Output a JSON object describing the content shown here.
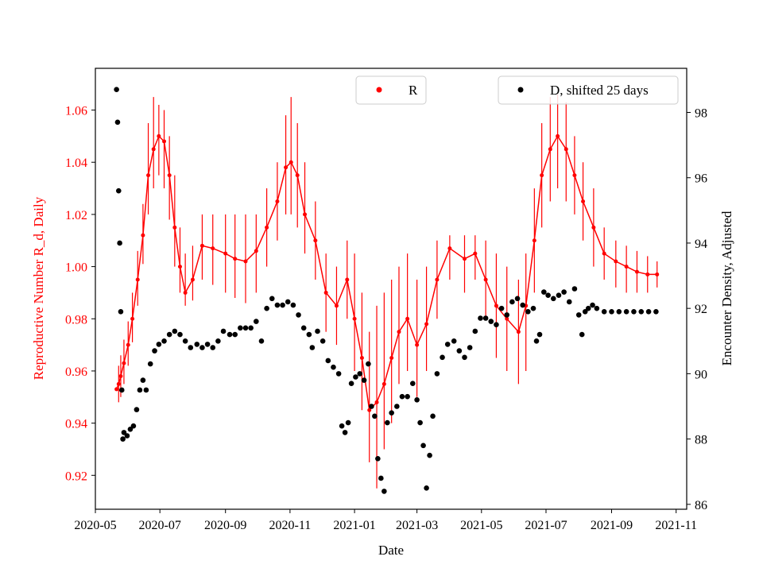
{
  "chart_data": {
    "type": "line",
    "xlabel": "Date",
    "ylabel_left": "Reproductive Number R_d, Daily",
    "ylabel_right": "Encounter Density, Adjusted",
    "x_range": [
      "2020-05-01",
      "2021-11-11"
    ],
    "ylim_left": [
      0.907,
      1.076
    ],
    "ylim_right": [
      85.85,
      99.35
    ],
    "x_tick_labels": [
      "2020-05",
      "2020-07",
      "2020-09",
      "2020-11",
      "2021-01",
      "2021-03",
      "2021-05",
      "2021-07",
      "2021-09",
      "2021-11"
    ],
    "x_tick_dates": [
      "2020-05-01",
      "2020-07-01",
      "2020-09-01",
      "2020-11-01",
      "2021-01-01",
      "2021-03-01",
      "2021-05-01",
      "2021-07-01",
      "2021-09-01",
      "2021-11-01"
    ],
    "y_left_ticks": [
      0.92,
      0.94,
      0.96,
      0.98,
      1.0,
      1.02,
      1.04,
      1.06
    ],
    "y_left_tick_labels": [
      "0.92",
      "0.94",
      "0.96",
      "0.98",
      "1.00",
      "1.02",
      "1.04",
      "1.06"
    ],
    "y_right_ticks": [
      86,
      88,
      90,
      92,
      94,
      96,
      98
    ],
    "y_right_tick_labels": [
      "86",
      "88",
      "90",
      "92",
      "94",
      "96",
      "98"
    ],
    "colors": {
      "R": "#ff0000",
      "D": "#000000",
      "axis": "#000000"
    },
    "legend": [
      {
        "label": "R",
        "placement": "top-center"
      },
      {
        "label": "D, shifted 25 days",
        "placement": "top-right"
      }
    ],
    "series": [
      {
        "name": "R",
        "axis": "left",
        "style": "markers with vertical error bars",
        "points": [
          [
            "2020-05-21",
            0.953,
            0.953,
            0.953
          ],
          [
            "2020-05-23",
            0.955,
            0.948,
            0.962
          ],
          [
            "2020-05-25",
            0.958,
            0.95,
            0.966
          ],
          [
            "2020-05-28",
            0.963,
            0.955,
            0.972
          ],
          [
            "2020-06-01",
            0.97,
            0.962,
            0.979
          ],
          [
            "2020-06-05",
            0.98,
            0.971,
            0.99
          ],
          [
            "2020-06-10",
            0.995,
            0.985,
            1.006
          ],
          [
            "2020-06-15",
            1.012,
            1.001,
            1.024
          ],
          [
            "2020-06-20",
            1.035,
            1.02,
            1.055
          ],
          [
            "2020-06-25",
            1.045,
            1.03,
            1.065
          ],
          [
            "2020-06-30",
            1.05,
            1.035,
            1.062
          ],
          [
            "2020-07-05",
            1.048,
            1.03,
            1.06
          ],
          [
            "2020-07-10",
            1.035,
            1.018,
            1.05
          ],
          [
            "2020-07-15",
            1.015,
            1.0,
            1.035
          ],
          [
            "2020-07-20",
            1.0,
            0.99,
            1.015
          ],
          [
            "2020-07-25",
            0.99,
            0.985,
            1.005
          ],
          [
            "2020-08-01",
            0.995,
            0.987,
            1.008
          ],
          [
            "2020-08-10",
            1.008,
            0.995,
            1.02
          ],
          [
            "2020-08-20",
            1.007,
            0.993,
            1.02
          ],
          [
            "2020-09-01",
            1.005,
            0.99,
            1.02
          ],
          [
            "2020-09-10",
            1.003,
            0.988,
            1.02
          ],
          [
            "2020-09-20",
            1.002,
            0.986,
            1.02
          ],
          [
            "2020-09-30",
            1.006,
            0.99,
            1.02
          ],
          [
            "2020-10-10",
            1.015,
            1.0,
            1.03
          ],
          [
            "2020-10-20",
            1.025,
            1.01,
            1.04
          ],
          [
            "2020-10-28",
            1.038,
            1.02,
            1.058
          ],
          [
            "2020-11-02",
            1.04,
            1.02,
            1.065
          ],
          [
            "2020-11-08",
            1.035,
            1.015,
            1.055
          ],
          [
            "2020-11-15",
            1.02,
            1.005,
            1.04
          ],
          [
            "2020-11-25",
            1.01,
            0.995,
            1.025
          ],
          [
            "2020-12-05",
            0.99,
            0.975,
            1.005
          ],
          [
            "2020-12-15",
            0.985,
            0.97,
            1.0
          ],
          [
            "2020-12-25",
            0.995,
            0.98,
            1.01
          ],
          [
            "2021-01-01",
            0.98,
            0.96,
            1.005
          ],
          [
            "2021-01-08",
            0.965,
            0.945,
            0.99
          ],
          [
            "2021-01-15",
            0.945,
            0.925,
            0.975
          ],
          [
            "2021-01-22",
            0.948,
            0.915,
            0.985
          ],
          [
            "2021-01-29",
            0.955,
            0.93,
            0.99
          ],
          [
            "2021-02-05",
            0.965,
            0.94,
            0.995
          ],
          [
            "2021-02-12",
            0.975,
            0.955,
            1.0
          ],
          [
            "2021-02-20",
            0.98,
            0.96,
            1.005
          ],
          [
            "2021-03-01",
            0.97,
            0.95,
            0.995
          ],
          [
            "2021-03-10",
            0.978,
            0.96,
            1.0
          ],
          [
            "2021-03-20",
            0.995,
            0.98,
            1.01
          ],
          [
            "2021-04-01",
            1.007,
            0.995,
            1.012
          ],
          [
            "2021-04-15",
            1.003,
            0.99,
            1.012
          ],
          [
            "2021-04-25",
            1.005,
            0.995,
            1.012
          ],
          [
            "2021-05-05",
            0.995,
            0.98,
            1.01
          ],
          [
            "2021-05-15",
            0.985,
            0.965,
            1.005
          ],
          [
            "2021-05-25",
            0.98,
            0.96,
            1.0
          ],
          [
            "2021-06-05",
            0.975,
            0.955,
            0.995
          ],
          [
            "2021-06-12",
            0.985,
            0.96,
            1.005
          ],
          [
            "2021-06-20",
            1.01,
            0.99,
            1.03
          ],
          [
            "2021-06-27",
            1.035,
            1.015,
            1.055
          ],
          [
            "2021-07-05",
            1.045,
            1.025,
            1.065
          ],
          [
            "2021-07-12",
            1.05,
            1.03,
            1.066
          ],
          [
            "2021-07-20",
            1.045,
            1.025,
            1.063
          ],
          [
            "2021-07-28",
            1.035,
            1.02,
            1.05
          ],
          [
            "2021-08-05",
            1.025,
            1.01,
            1.04
          ],
          [
            "2021-08-15",
            1.015,
            1.0,
            1.03
          ],
          [
            "2021-08-25",
            1.005,
            0.995,
            1.015
          ],
          [
            "2021-09-05",
            1.002,
            0.992,
            1.01
          ],
          [
            "2021-09-15",
            1.0,
            0.99,
            1.008
          ],
          [
            "2021-09-25",
            0.998,
            0.99,
            1.006
          ],
          [
            "2021-10-05",
            0.997,
            0.99,
            1.004
          ],
          [
            "2021-10-14",
            0.997,
            0.992,
            1.002
          ]
        ]
      },
      {
        "name": "D, shifted 25 days",
        "axis": "right",
        "style": "markers",
        "points": [
          [
            "2020-05-21",
            98.7
          ],
          [
            "2020-05-22",
            97.7
          ],
          [
            "2020-05-23",
            95.6
          ],
          [
            "2020-05-24",
            94.0
          ],
          [
            "2020-05-25",
            91.9
          ],
          [
            "2020-05-26",
            89.5
          ],
          [
            "2020-05-27",
            88.0
          ],
          [
            "2020-05-28",
            88.2
          ],
          [
            "2020-05-31",
            88.1
          ],
          [
            "2020-06-03",
            88.3
          ],
          [
            "2020-06-06",
            88.4
          ],
          [
            "2020-06-09",
            88.9
          ],
          [
            "2020-06-12",
            89.5
          ],
          [
            "2020-06-15",
            89.8
          ],
          [
            "2020-06-18",
            89.5
          ],
          [
            "2020-06-22",
            90.3
          ],
          [
            "2020-06-26",
            90.7
          ],
          [
            "2020-06-30",
            90.9
          ],
          [
            "2020-07-05",
            91.0
          ],
          [
            "2020-07-10",
            91.2
          ],
          [
            "2020-07-15",
            91.3
          ],
          [
            "2020-07-20",
            91.2
          ],
          [
            "2020-07-25",
            91.0
          ],
          [
            "2020-07-30",
            90.8
          ],
          [
            "2020-08-05",
            90.9
          ],
          [
            "2020-08-10",
            90.8
          ],
          [
            "2020-08-15",
            90.9
          ],
          [
            "2020-08-20",
            90.8
          ],
          [
            "2020-08-25",
            91.0
          ],
          [
            "2020-08-30",
            91.3
          ],
          [
            "2020-09-05",
            91.2
          ],
          [
            "2020-09-10",
            91.2
          ],
          [
            "2020-09-15",
            91.4
          ],
          [
            "2020-09-20",
            91.4
          ],
          [
            "2020-09-25",
            91.4
          ],
          [
            "2020-09-30",
            91.6
          ],
          [
            "2020-10-05",
            91.0
          ],
          [
            "2020-10-10",
            92.0
          ],
          [
            "2020-10-15",
            92.3
          ],
          [
            "2020-10-20",
            92.1
          ],
          [
            "2020-10-25",
            92.1
          ],
          [
            "2020-10-30",
            92.2
          ],
          [
            "2020-11-04",
            92.1
          ],
          [
            "2020-11-09",
            91.8
          ],
          [
            "2020-11-14",
            91.4
          ],
          [
            "2020-11-19",
            91.2
          ],
          [
            "2020-11-22",
            90.8
          ],
          [
            "2020-11-27",
            91.3
          ],
          [
            "2020-12-02",
            91.0
          ],
          [
            "2020-12-07",
            90.4
          ],
          [
            "2020-12-12",
            90.2
          ],
          [
            "2020-12-17",
            90.0
          ],
          [
            "2020-12-20",
            88.4
          ],
          [
            "2020-12-23",
            88.2
          ],
          [
            "2020-12-26",
            88.5
          ],
          [
            "2020-12-29",
            89.7
          ],
          [
            "2021-01-02",
            89.9
          ],
          [
            "2021-01-06",
            90.0
          ],
          [
            "2021-01-10",
            89.8
          ],
          [
            "2021-01-14",
            90.3
          ],
          [
            "2021-01-17",
            89.0
          ],
          [
            "2021-01-20",
            88.7
          ],
          [
            "2021-01-23",
            87.4
          ],
          [
            "2021-01-26",
            86.8
          ],
          [
            "2021-01-29",
            86.4
          ],
          [
            "2021-02-01",
            88.5
          ],
          [
            "2021-02-05",
            88.8
          ],
          [
            "2021-02-10",
            89.0
          ],
          [
            "2021-02-15",
            89.3
          ],
          [
            "2021-02-20",
            89.3
          ],
          [
            "2021-02-25",
            89.7
          ],
          [
            "2021-03-01",
            89.2
          ],
          [
            "2021-03-04",
            88.5
          ],
          [
            "2021-03-07",
            87.8
          ],
          [
            "2021-03-10",
            86.5
          ],
          [
            "2021-03-13",
            87.5
          ],
          [
            "2021-03-16",
            88.7
          ],
          [
            "2021-03-20",
            90.0
          ],
          [
            "2021-03-25",
            90.5
          ],
          [
            "2021-03-30",
            90.9
          ],
          [
            "2021-04-05",
            91.0
          ],
          [
            "2021-04-10",
            90.7
          ],
          [
            "2021-04-15",
            90.5
          ],
          [
            "2021-04-20",
            90.8
          ],
          [
            "2021-04-25",
            91.3
          ],
          [
            "2021-04-30",
            91.7
          ],
          [
            "2021-05-05",
            91.7
          ],
          [
            "2021-05-10",
            91.6
          ],
          [
            "2021-05-15",
            91.5
          ],
          [
            "2021-05-20",
            92.0
          ],
          [
            "2021-05-25",
            91.8
          ],
          [
            "2021-05-30",
            92.2
          ],
          [
            "2021-06-04",
            92.3
          ],
          [
            "2021-06-09",
            92.1
          ],
          [
            "2021-06-14",
            91.9
          ],
          [
            "2021-06-19",
            92.0
          ],
          [
            "2021-06-22",
            91.0
          ],
          [
            "2021-06-25",
            91.2
          ],
          [
            "2021-06-29",
            92.5
          ],
          [
            "2021-07-03",
            92.4
          ],
          [
            "2021-07-08",
            92.3
          ],
          [
            "2021-07-13",
            92.4
          ],
          [
            "2021-07-18",
            92.5
          ],
          [
            "2021-07-23",
            92.2
          ],
          [
            "2021-07-28",
            92.6
          ],
          [
            "2021-08-01",
            91.8
          ],
          [
            "2021-08-04",
            91.2
          ],
          [
            "2021-08-07",
            91.9
          ],
          [
            "2021-08-10",
            92.0
          ],
          [
            "2021-08-14",
            92.1
          ],
          [
            "2021-08-18",
            92.0
          ],
          [
            "2021-08-25",
            91.9
          ],
          [
            "2021-09-01",
            91.9
          ],
          [
            "2021-09-08",
            91.9
          ],
          [
            "2021-09-15",
            91.9
          ],
          [
            "2021-09-22",
            91.9
          ],
          [
            "2021-09-29",
            91.9
          ],
          [
            "2021-10-06",
            91.9
          ],
          [
            "2021-10-13",
            91.9
          ]
        ]
      }
    ]
  }
}
